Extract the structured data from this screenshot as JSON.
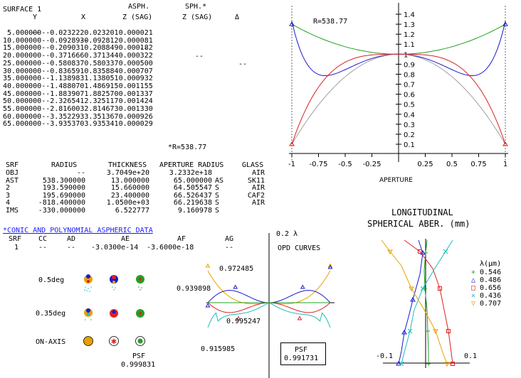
{
  "sag_table": {
    "surface_label": "SURFACE 1",
    "col_y": "Y",
    "col_x": "X",
    "col_asph_top": "ASPH.",
    "col_asph": "Z (SAG)",
    "col_sph_top": "SPH.*",
    "col_sph": "Z (SAG)",
    "col_delta": "Δ",
    "dash_row": [
      "--",
      "--",
      "--",
      "--",
      "--"
    ],
    "rows": [
      [
        "5.000000",
        "--",
        "0.023222",
        "0.023201",
        "0.000021"
      ],
      [
        "10.000000",
        "--",
        "0.092893",
        "0.092812",
        "0.000081"
      ],
      [
        "15.000000",
        "--",
        "0.209031",
        "0.208849",
        "0.000182"
      ],
      [
        "20.000000",
        "--",
        "0.371666",
        "0.371344",
        "0.000322"
      ],
      [
        "25.000000",
        "--",
        "0.580837",
        "0.580337",
        "0.000500"
      ],
      [
        "30.000000",
        "--",
        "0.836591",
        "0.835884",
        "0.000707"
      ],
      [
        "35.000000",
        "--",
        "1.138983",
        "1.138051",
        "0.000932"
      ],
      [
        "40.000000",
        "--",
        "1.488070",
        "1.486915",
        "0.001155"
      ],
      [
        "45.000000",
        "--",
        "1.883907",
        "1.882570",
        "0.001337"
      ],
      [
        "50.000000",
        "--",
        "2.326541",
        "2.325117",
        "0.001424"
      ],
      [
        "55.000000",
        "--",
        "2.816003",
        "2.814673",
        "0.001330"
      ],
      [
        "60.000000",
        "--",
        "3.352293",
        "3.351367",
        "0.000926"
      ],
      [
        "65.000000",
        "--",
        "3.935370",
        "3.935341",
        "0.000029"
      ]
    ],
    "footnote": "*R=538.77"
  },
  "lens_table": {
    "headers": [
      "SRF",
      "RADIUS",
      "THICKNESS",
      "APERTURE RADIUS",
      "GLASS"
    ],
    "rows": [
      {
        "srf": "OBJ",
        "radius": "--",
        "thickness": "3.7049e+20",
        "aperture": "3.2332e+18",
        "flag": "",
        "glass": "AIR"
      },
      {
        "srf": "AST",
        "radius": "538.300000",
        "thickness": "13.000000",
        "aperture": "65.000000",
        "flag": "AS",
        "glass": "SK11"
      },
      {
        "srf": "2",
        "radius": "193.590000",
        "thickness": "15.660000",
        "aperture": "64.505547",
        "flag": "S",
        "glass": "AIR"
      },
      {
        "srf": "3",
        "radius": "195.690000",
        "thickness": "23.400000",
        "aperture": "66.526437",
        "flag": "S",
        "glass": "CAF2"
      },
      {
        "srf": "4",
        "radius": "-818.400000",
        "thickness": "1.0500e+03",
        "aperture": "66.219638",
        "flag": "S",
        "glass": "AIR"
      },
      {
        "srf": "IMS",
        "radius": "-330.000000",
        "thickness": "6.522777",
        "aperture": "9.160978",
        "flag": "S",
        "glass": ""
      }
    ]
  },
  "conic_table": {
    "title": "*CONIC AND POLYNOMIAL ASPHERIC DATA",
    "headers": [
      "SRF",
      "CC",
      "AD",
      "AE",
      "AF",
      "AG"
    ],
    "row": [
      "1",
      "--",
      "--",
      "-3.0300e-14",
      "-3.6000e-18",
      "--"
    ]
  },
  "sag_plot": {
    "radius_label": "R=538.77",
    "xlabel": "APERTURE",
    "x_ticks": [
      "-1",
      "-0.75",
      "-0.5",
      "-0.25",
      "0.25",
      "0.5",
      "0.75",
      "1"
    ],
    "y_ticks": [
      "0.1",
      "0.2",
      "0.3",
      "0.4",
      "0.5",
      "0.6",
      "0.7",
      "0.8",
      "0.9",
      "1",
      "1.1",
      "1.2",
      "1.3",
      "1.4"
    ],
    "colors": {
      "green": "#22a022",
      "blue": "#1a1acc",
      "gray": "#8a8a8a",
      "red": "#dd2222"
    }
  },
  "spot": {
    "labels": [
      "0.5deg",
      "0.35deg",
      "ON-AXIS"
    ],
    "psf_label": "PSF",
    "psf_value": "0.999831"
  },
  "opd": {
    "scale_label": "0.2 λ",
    "title": "OPD CURVES",
    "values": [
      "0.972485",
      "0.939898",
      "0.995247",
      "0.915985"
    ],
    "psf_label": "PSF",
    "psf_value": "0.991731"
  },
  "longsa": {
    "title_line1": "LONGITUDINAL",
    "title_line2": "SPHERICAL ABER. (mm)",
    "x_left": "-0.1",
    "x_right": "0.1",
    "legend_title": "λ(μm)",
    "legend": [
      {
        "symbol": "+",
        "label": "0.546",
        "color": "#22a022"
      },
      {
        "symbol": "△",
        "label": "0.486",
        "color": "#1a1acc"
      },
      {
        "symbol": "□",
        "label": "0.656",
        "color": "#dd2222"
      },
      {
        "symbol": "✕",
        "label": "0.436",
        "color": "#22bbbb"
      },
      {
        "symbol": "▽",
        "label": "0.707",
        "color": "#e8a000"
      }
    ]
  }
}
